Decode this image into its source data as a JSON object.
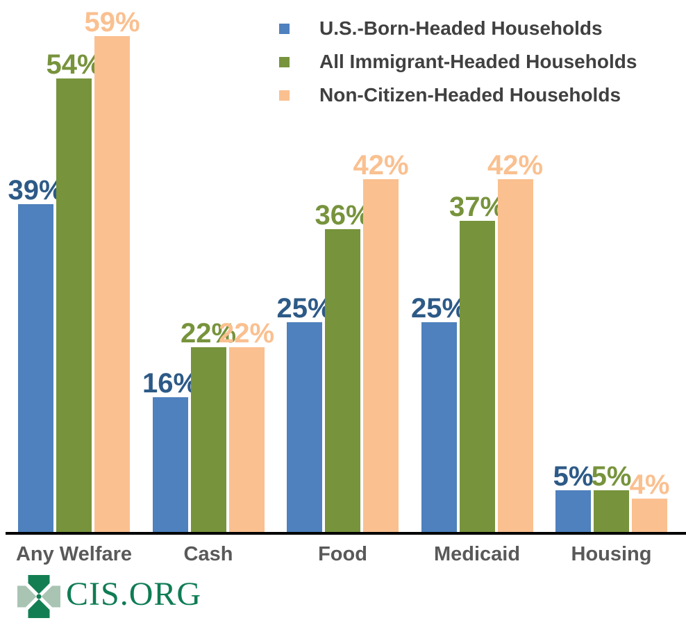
{
  "chart_data": {
    "type": "bar",
    "title": "",
    "xlabel": "",
    "ylabel": "",
    "categories": [
      "Any Welfare",
      "Cash",
      "Food",
      "Medicaid",
      "Housing"
    ],
    "series": [
      {
        "name": "U.S.-Born-Headed Households",
        "bar_color": "#4E81BD",
        "label_color": "#2D5A87",
        "values": [
          39,
          16,
          25,
          25,
          5
        ]
      },
      {
        "name": "All Immigrant-Headed Households",
        "bar_color": "#77933C",
        "label_color": "#77933C",
        "values": [
          54,
          22,
          36,
          37,
          5
        ]
      },
      {
        "name": "Non-Citizen-Headed Households",
        "bar_color": "#FAC090",
        "label_color": "#FAC090",
        "values": [
          59,
          22,
          42,
          42,
          4
        ]
      }
    ],
    "value_suffix": "%",
    "ylim": [
      0,
      63
    ],
    "grid": false,
    "legend_position": "top-right",
    "axis_line_color": "#000000",
    "category_label_color": "#595959",
    "legend_text_color": "#404040"
  },
  "footer": {
    "logo_text": "CIS.ORG",
    "logo_text_color": "#0F7C54",
    "logo_icon": "cis-clover-icon",
    "logo_icon_colors": {
      "dark_green": "#137E52",
      "light_green": "#A9C4B3"
    }
  }
}
